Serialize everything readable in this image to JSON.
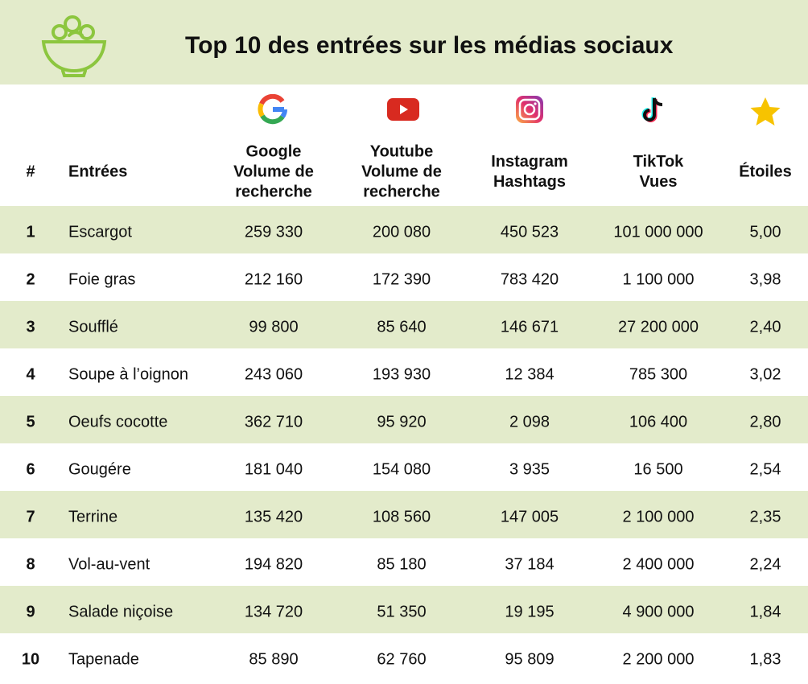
{
  "header": {
    "title": "Top 10 des entrées sur les médias sociaux"
  },
  "table": {
    "columns": [
      [
        "#"
      ],
      [
        "Entrées"
      ],
      [
        "Google",
        "Volume de",
        "recherche"
      ],
      [
        "Youtube",
        "Volume de",
        "recherche"
      ],
      [
        "Instagram",
        "Hashtags"
      ],
      [
        "TikTok",
        "Vues"
      ],
      [
        "Étoiles"
      ]
    ],
    "rows": [
      [
        "1",
        "Escargot",
        "259 330",
        "200 080",
        "450 523",
        "101 000 000",
        "5,00"
      ],
      [
        "2",
        "Foie gras",
        "212 160",
        "172 390",
        "783 420",
        "1 100 000",
        "3,98"
      ],
      [
        "3",
        "Soufflé",
        "99 800",
        "85 640",
        "146 671",
        "27 200 000",
        "2,40"
      ],
      [
        "4",
        "Soupe à l’oignon",
        "243 060",
        "193 930",
        "12 384",
        "785 300",
        "3,02"
      ],
      [
        "5",
        "Oeufs cocotte",
        "362 710",
        "95 920",
        "2 098",
        "106 400",
        "2,80"
      ],
      [
        "6",
        "Gougére",
        "181 040",
        "154 080",
        "3 935",
        "16 500",
        "2,54"
      ],
      [
        "7",
        "Terrine",
        "135 420",
        "108 560",
        "147 005",
        "2 100 000",
        "2,35"
      ],
      [
        "8",
        "Vol-au-vent",
        "194 820",
        "85 180",
        "37 184",
        "2 400 000",
        "2,24"
      ],
      [
        "9",
        "Salade niçoise",
        "134 720",
        "51 350",
        "19 195",
        "4 900 000",
        "1,84"
      ],
      [
        "10",
        "Tapenade",
        "85 890",
        "62 760",
        "95 809",
        "2 200 000",
        "1,83"
      ]
    ]
  }
}
